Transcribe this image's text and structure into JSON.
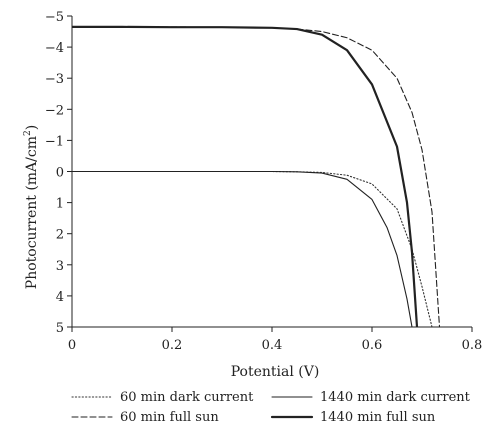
{
  "chart_data": {
    "type": "line",
    "title": "",
    "xlabel": "Potential (V)",
    "ylabel_main": "Photocurrent (mA/cm",
    "ylabel_sup": "2",
    "ylabel_close": ")",
    "xlim": [
      0,
      0.8
    ],
    "ylim": [
      -5,
      5
    ],
    "y_axis_inverted": true,
    "grid": false,
    "legend_position": "bottom",
    "x_ticks": [
      {
        "v": 0,
        "label": "0"
      },
      {
        "v": 0.2,
        "label": "0.2"
      },
      {
        "v": 0.4,
        "label": "0.4"
      },
      {
        "v": 0.6,
        "label": "0.6"
      },
      {
        "v": 0.8,
        "label": "0.8"
      }
    ],
    "y_ticks": [
      {
        "v": -5,
        "label": "−5"
      },
      {
        "v": -4,
        "label": "−4"
      },
      {
        "v": -3,
        "label": "−3"
      },
      {
        "v": -2,
        "label": "−2"
      },
      {
        "v": -1,
        "label": "−1"
      },
      {
        "v": 0,
        "label": "0"
      },
      {
        "v": 1,
        "label": "1"
      },
      {
        "v": 2,
        "label": "2"
      },
      {
        "v": 3,
        "label": "3"
      },
      {
        "v": 4,
        "label": "4"
      },
      {
        "v": 5,
        "label": "5"
      }
    ],
    "series": [
      {
        "name": "60 min dark current",
        "style": "dotted",
        "color": "#333333",
        "x": [
          0,
          0.1,
          0.2,
          0.3,
          0.4,
          0.45,
          0.5,
          0.55,
          0.6,
          0.65,
          0.68,
          0.7,
          0.72
        ],
        "y": [
          0,
          0,
          0,
          0,
          0,
          0.01,
          0.03,
          0.12,
          0.4,
          1.2,
          2.5,
          3.7,
          5
        ]
      },
      {
        "name": "60 min full sun",
        "style": "dashed",
        "color": "#222222",
        "x": [
          0,
          0.1,
          0.2,
          0.3,
          0.4,
          0.45,
          0.5,
          0.55,
          0.6,
          0.65,
          0.68,
          0.7,
          0.72,
          0.735
        ],
        "y": [
          -4.65,
          -4.65,
          -4.65,
          -4.64,
          -4.62,
          -4.58,
          -4.5,
          -4.3,
          -3.9,
          -3.0,
          -1.9,
          -0.7,
          1.3,
          5
        ]
      },
      {
        "name": "1440 min dark current",
        "style": "solid",
        "color": "#222222",
        "x": [
          0,
          0.1,
          0.2,
          0.3,
          0.4,
          0.45,
          0.5,
          0.55,
          0.6,
          0.63,
          0.65,
          0.67,
          0.68
        ],
        "y": [
          0,
          0,
          0,
          0,
          0,
          0.01,
          0.05,
          0.25,
          0.9,
          1.8,
          2.7,
          4.1,
          5
        ]
      },
      {
        "name": "1440 min full sun",
        "style": "thick",
        "color": "#222222",
        "x": [
          0,
          0.1,
          0.2,
          0.3,
          0.4,
          0.45,
          0.5,
          0.55,
          0.6,
          0.65,
          0.67,
          0.68,
          0.69
        ],
        "y": [
          -4.65,
          -4.65,
          -4.64,
          -4.64,
          -4.62,
          -4.58,
          -4.4,
          -3.9,
          -2.8,
          -0.8,
          1.0,
          2.6,
          5
        ]
      }
    ]
  }
}
